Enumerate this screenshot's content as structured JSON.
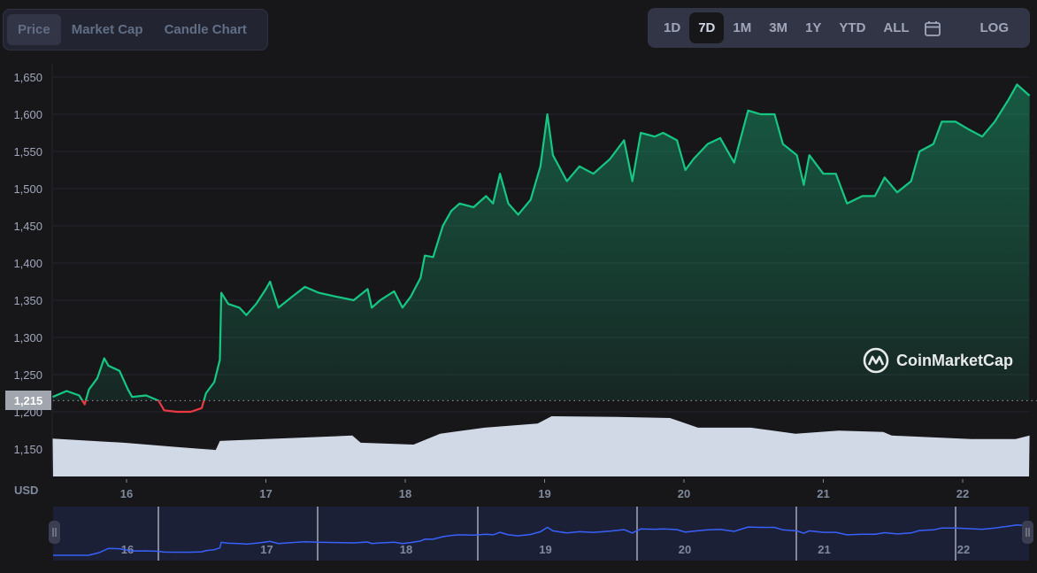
{
  "tabs": [
    {
      "label": "Price",
      "active": true
    },
    {
      "label": "Market Cap",
      "active": false
    },
    {
      "label": "Candle Chart",
      "active": false
    }
  ],
  "ranges": [
    {
      "label": "1D",
      "active": false
    },
    {
      "label": "7D",
      "active": true
    },
    {
      "label": "1M",
      "active": false
    },
    {
      "label": "3M",
      "active": false
    },
    {
      "label": "1Y",
      "active": false
    },
    {
      "label": "YTD",
      "active": false
    },
    {
      "label": "ALL",
      "active": false
    }
  ],
  "calendar_icon": "calendar-icon",
  "log_label": "LOG",
  "currency_label": "USD",
  "watermark": "CoinMarketCap",
  "baseline_label": "1,215",
  "colors": {
    "up": "#16c784",
    "down": "#ea3943",
    "volume": "#d1d8e6",
    "navigator_line": "#3861fb",
    "navigator_bg": "#1b2037"
  },
  "chart_data": {
    "type": "line",
    "title": "",
    "xlabel": "",
    "ylabel": "USD",
    "ylim": [
      1125,
      1668
    ],
    "xlim": [
      15.47,
      22.48
    ],
    "y_ticks": [
      {
        "v": 1150,
        "label": "1,150"
      },
      {
        "v": 1200,
        "label": "1,200"
      },
      {
        "v": 1250,
        "label": "1,250"
      },
      {
        "v": 1300,
        "label": "1,300"
      },
      {
        "v": 1350,
        "label": "1,350"
      },
      {
        "v": 1400,
        "label": "1,400"
      },
      {
        "v": 1450,
        "label": "1,450"
      },
      {
        "v": 1500,
        "label": "1,500"
      },
      {
        "v": 1550,
        "label": "1,550"
      },
      {
        "v": 1600,
        "label": "1,600"
      },
      {
        "v": 1650,
        "label": "1,650"
      }
    ],
    "x_ticks": [
      {
        "v": 16,
        "label": "16"
      },
      {
        "v": 17,
        "label": "17"
      },
      {
        "v": 18,
        "label": "18"
      },
      {
        "v": 19,
        "label": "19"
      },
      {
        "v": 20,
        "label": "20"
      },
      {
        "v": 21,
        "label": "21"
      },
      {
        "v": 22,
        "label": "22"
      }
    ],
    "baseline": 1215,
    "grid": true,
    "series": [
      {
        "name": "Price",
        "x": [
          15.47,
          15.57,
          15.66,
          15.7,
          15.73,
          15.79,
          15.84,
          15.87,
          15.95,
          16.01,
          16.04,
          16.14,
          16.23,
          16.27,
          16.36,
          16.46,
          16.54,
          16.57,
          16.63,
          16.67,
          16.68,
          16.73,
          16.81,
          16.86,
          16.93,
          17.0,
          17.03,
          17.09,
          17.19,
          17.28,
          17.38,
          17.5,
          17.63,
          17.73,
          17.76,
          17.82,
          17.92,
          17.98,
          18.04,
          18.11,
          18.14,
          18.2,
          18.27,
          18.33,
          18.39,
          18.49,
          18.58,
          18.63,
          18.68,
          18.74,
          18.81,
          18.9,
          18.97,
          19.02,
          19.06,
          19.16,
          19.25,
          19.35,
          19.47,
          19.57,
          19.63,
          19.69,
          19.79,
          19.85,
          19.95,
          20.01,
          20.07,
          20.17,
          20.26,
          20.36,
          20.46,
          20.55,
          20.65,
          20.71,
          20.81,
          20.86,
          20.9,
          21.0,
          21.09,
          21.17,
          21.28,
          21.37,
          21.44,
          21.53,
          21.63,
          21.69,
          21.79,
          21.85,
          21.95,
          22.04,
          22.14,
          22.23,
          22.33,
          22.39,
          22.48
        ],
        "values": [
          1220,
          1228,
          1222,
          1210,
          1230,
          1245,
          1272,
          1262,
          1255,
          1230,
          1220,
          1222,
          1215,
          1202,
          1200,
          1200,
          1205,
          1225,
          1240,
          1270,
          1360,
          1345,
          1340,
          1330,
          1345,
          1365,
          1375,
          1340,
          1355,
          1368,
          1360,
          1355,
          1350,
          1365,
          1340,
          1350,
          1362,
          1340,
          1355,
          1380,
          1410,
          1408,
          1450,
          1470,
          1480,
          1475,
          1490,
          1480,
          1520,
          1480,
          1465,
          1485,
          1530,
          1600,
          1545,
          1510,
          1530,
          1520,
          1540,
          1565,
          1510,
          1575,
          1570,
          1575,
          1565,
          1525,
          1540,
          1560,
          1568,
          1535,
          1605,
          1600,
          1600,
          1560,
          1545,
          1505,
          1545,
          1520,
          1520,
          1480,
          1490,
          1490,
          1515,
          1495,
          1510,
          1550,
          1560,
          1590,
          1590,
          1580,
          1570,
          1590,
          1620,
          1640,
          1625
        ]
      }
    ],
    "volume_relative": {
      "x": [
        15.47,
        15.98,
        16.36,
        16.64,
        16.67,
        17.62,
        17.68,
        18.06,
        18.25,
        18.57,
        18.95,
        19.05,
        19.52,
        19.9,
        20.1,
        20.48,
        20.8,
        21.11,
        21.43,
        21.49,
        22.06,
        22.38,
        22.48
      ],
      "values": [
        0.63,
        0.56,
        0.49,
        0.44,
        0.59,
        0.68,
        0.56,
        0.53,
        0.71,
        0.81,
        0.88,
        1.0,
        0.99,
        0.97,
        0.81,
        0.81,
        0.71,
        0.76,
        0.74,
        0.68,
        0.62,
        0.62,
        0.68
      ]
    }
  },
  "navigator": {
    "x_ticks": [
      {
        "v": 16,
        "label": "16"
      },
      {
        "v": 17,
        "label": "17"
      },
      {
        "v": 18,
        "label": "18"
      },
      {
        "v": 19,
        "label": "19"
      },
      {
        "v": 20,
        "label": "20"
      },
      {
        "v": 21,
        "label": "21"
      },
      {
        "v": 22,
        "label": "22"
      }
    ]
  }
}
